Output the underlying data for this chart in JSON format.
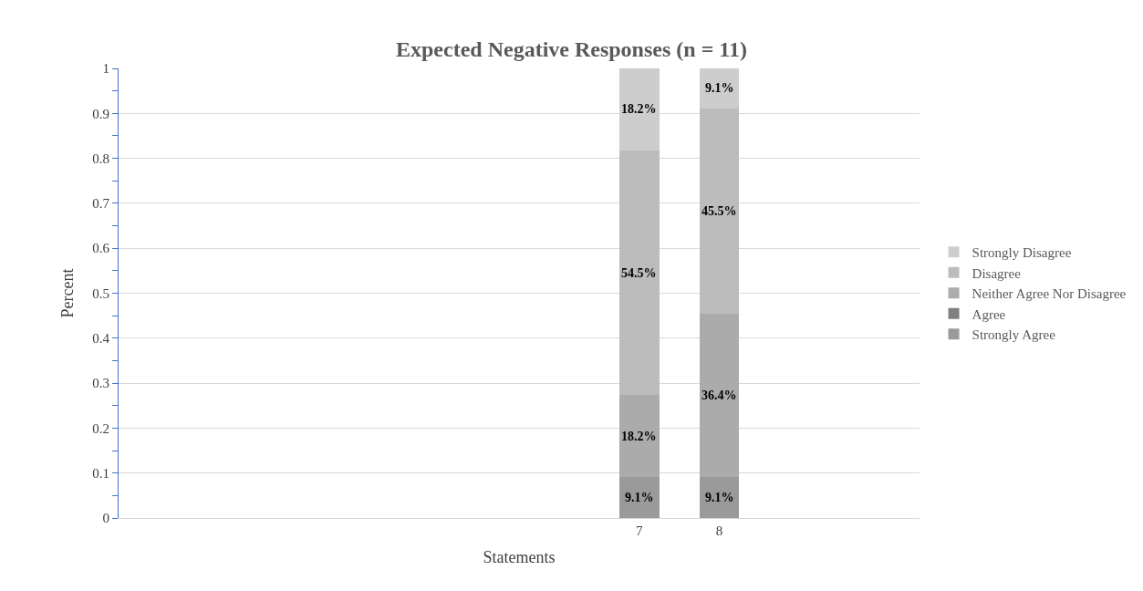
{
  "chart_data": {
    "type": "bar",
    "stacked": true,
    "title": "Expected Negative Responses (n = 11)",
    "xlabel": "Statements",
    "ylabel": "Percent",
    "categories": [
      null,
      null,
      null,
      null,
      null,
      null,
      "7",
      "8",
      null,
      null
    ],
    "series": [
      {
        "name": "Strongly Agree",
        "color": "#9a9a9a",
        "values": [
          null,
          null,
          null,
          null,
          null,
          null,
          0.091,
          0.091,
          null,
          null
        ],
        "value_labels": [
          null,
          null,
          null,
          null,
          null,
          null,
          "9.1%",
          "9.1%",
          null,
          null
        ]
      },
      {
        "name": "Agree",
        "color": "#7f7f7f",
        "values": [
          null,
          null,
          null,
          null,
          null,
          null,
          0,
          0,
          null,
          null
        ]
      },
      {
        "name": "Neither Agree Nor Disagree",
        "color": "#ababab",
        "values": [
          null,
          null,
          null,
          null,
          null,
          null,
          0.182,
          0.364,
          null,
          null
        ],
        "value_labels": [
          null,
          null,
          null,
          null,
          null,
          null,
          "18.2%",
          "36.4%",
          null,
          null
        ]
      },
      {
        "name": "Disagree",
        "color": "#bcbcbc",
        "values": [
          null,
          null,
          null,
          null,
          null,
          null,
          0.545,
          0.455,
          null,
          null
        ],
        "value_labels": [
          null,
          null,
          null,
          null,
          null,
          null,
          "54.5%",
          "45.5%",
          null,
          null
        ]
      },
      {
        "name": "Strongly Disagree",
        "color": "#cdcdcd",
        "values": [
          null,
          null,
          null,
          null,
          null,
          null,
          0.182,
          0.091,
          null,
          null
        ],
        "value_labels": [
          null,
          null,
          null,
          null,
          null,
          null,
          "18.2%",
          "9.1%",
          null,
          null
        ]
      }
    ],
    "ylim": [
      0,
      1
    ],
    "yticks": [
      0,
      0.1,
      0.2,
      0.3,
      0.4,
      0.5,
      0.6,
      0.7,
      0.8,
      0.9,
      1
    ],
    "grid": "y",
    "legend": "right"
  }
}
